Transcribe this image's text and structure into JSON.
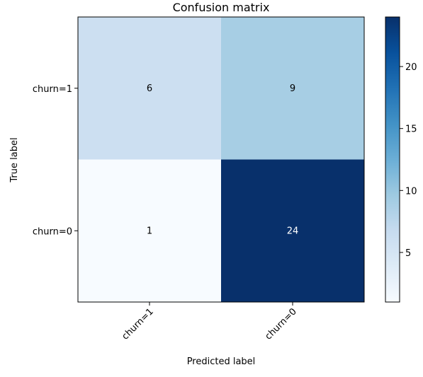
{
  "chart_data": {
    "type": "heatmap",
    "title": "Confusion matrix",
    "xlabel": "Predicted label",
    "ylabel": "True label",
    "x_categories": [
      "churn=1",
      "churn=0"
    ],
    "y_categories": [
      "churn=1",
      "churn=0"
    ],
    "values": [
      [
        6,
        9
      ],
      [
        1,
        24
      ]
    ],
    "colormap": "Blues",
    "colormap_stops": [
      "#f7fbff",
      "#deebf7",
      "#c6dbef",
      "#9ecae1",
      "#6baed6",
      "#4292c6",
      "#2171b5",
      "#08519c",
      "#08306b"
    ],
    "color_range": [
      1,
      24
    ],
    "colorbar_ticks": [
      5,
      10,
      15,
      20
    ],
    "text_colors": {
      "light": "#ffffff",
      "dark": "#000000"
    }
  }
}
